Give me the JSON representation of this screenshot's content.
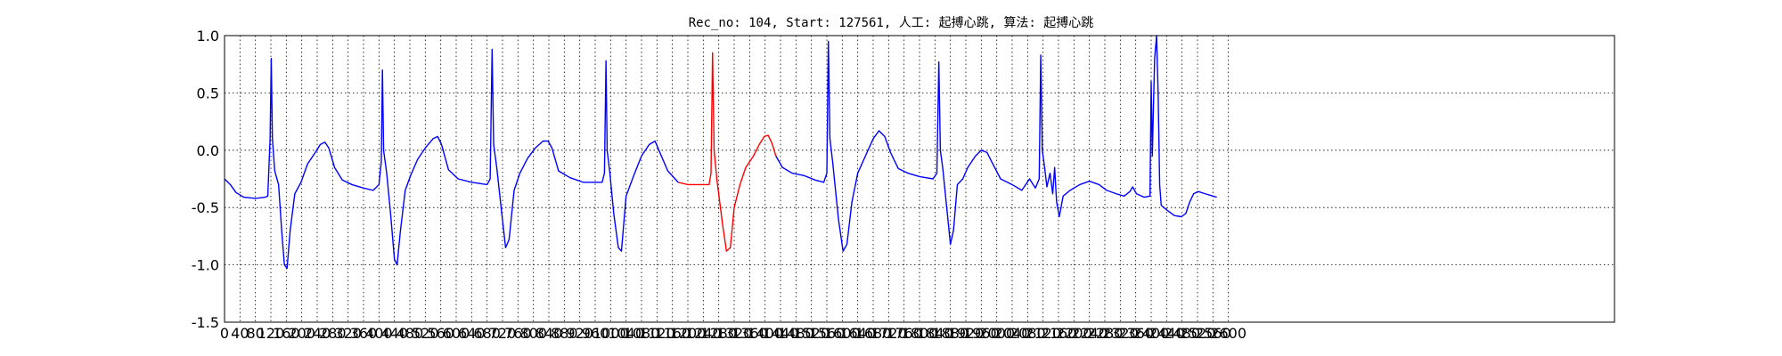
{
  "chart_data": {
    "type": "line",
    "title": "Rec_no: 104, Start: 127561, 人工: 起搏心跳, 算法: 起搏心跳",
    "xlabel": "",
    "ylabel": "",
    "xlim": [
      0,
      3600
    ],
    "ylim": [
      -1.5,
      1.0
    ],
    "grid": true,
    "yticks": [
      1.0,
      0.5,
      0.0,
      -0.5,
      -1.0,
      -1.5
    ],
    "ytick_labels": [
      "1.0",
      "0.5",
      "0.0",
      "-0.5",
      "-1.0",
      "-1.5"
    ],
    "xticks": [
      0,
      40,
      80,
      120,
      160,
      200,
      240,
      280,
      320,
      360,
      400,
      440,
      480,
      520,
      560,
      600,
      640,
      680,
      720,
      760,
      800,
      840,
      880,
      920,
      960,
      1000,
      1040,
      1080,
      1120,
      1160,
      1200,
      1240,
      1280,
      1320,
      1360,
      1400,
      1440,
      1480,
      1520,
      1560,
      1600,
      1640,
      1680,
      1720,
      1760,
      1800,
      1840,
      1880,
      1920,
      1960,
      2000,
      2040,
      2080,
      2120,
      2160,
      2200,
      2240,
      2280,
      2320,
      2360,
      2400,
      2440,
      2480,
      2520,
      2560,
      2600
    ],
    "series": [
      {
        "color": "#0000ff",
        "points": [
          [
            0,
            -0.25
          ],
          [
            15,
            -0.3
          ],
          [
            30,
            -0.37
          ],
          [
            50,
            -0.41
          ],
          [
            80,
            -0.42
          ],
          [
            105,
            -0.41
          ],
          [
            112,
            -0.4
          ],
          [
            118,
            0.1
          ],
          [
            121,
            0.8
          ],
          [
            124,
            0.1
          ],
          [
            130,
            -0.18
          ],
          [
            140,
            -0.3
          ],
          [
            148,
            -0.7
          ],
          [
            155,
            -1.0
          ],
          [
            162,
            -1.03
          ],
          [
            170,
            -0.7
          ],
          [
            182,
            -0.38
          ],
          [
            198,
            -0.28
          ],
          [
            215,
            -0.12
          ],
          [
            235,
            -0.02
          ],
          [
            248,
            0.05
          ],
          [
            260,
            0.07
          ],
          [
            270,
            0.02
          ],
          [
            285,
            -0.15
          ],
          [
            305,
            -0.26
          ],
          [
            330,
            -0.3
          ],
          [
            360,
            -0.33
          ],
          [
            385,
            -0.35
          ],
          [
            400,
            -0.3
          ],
          [
            406,
            -0.1
          ],
          [
            409,
            0.7
          ],
          [
            412,
            0.0
          ],
          [
            420,
            -0.2
          ],
          [
            430,
            -0.55
          ],
          [
            440,
            -0.95
          ],
          [
            447,
            -1.0
          ],
          [
            455,
            -0.72
          ],
          [
            468,
            -0.35
          ],
          [
            482,
            -0.22
          ],
          [
            500,
            -0.08
          ],
          [
            520,
            0.02
          ],
          [
            540,
            0.1
          ],
          [
            552,
            0.12
          ],
          [
            562,
            0.05
          ],
          [
            580,
            -0.17
          ],
          [
            605,
            -0.25
          ],
          [
            640,
            -0.28
          ],
          [
            680,
            -0.3
          ],
          [
            688,
            -0.25
          ],
          [
            693,
            0.88
          ],
          [
            697,
            0.05
          ],
          [
            705,
            -0.15
          ],
          [
            718,
            -0.55
          ],
          [
            728,
            -0.85
          ],
          [
            737,
            -0.78
          ],
          [
            750,
            -0.35
          ],
          [
            765,
            -0.2
          ],
          [
            785,
            -0.07
          ],
          [
            805,
            0.02
          ],
          [
            825,
            0.08
          ],
          [
            838,
            0.08
          ],
          [
            848,
            0.02
          ],
          [
            865,
            -0.18
          ],
          [
            895,
            -0.24
          ],
          [
            930,
            -0.28
          ],
          [
            978,
            -0.28
          ],
          [
            984,
            -0.2
          ],
          [
            988,
            0.78
          ],
          [
            991,
            0.0
          ],
          [
            998,
            -0.2
          ],
          [
            1008,
            -0.55
          ],
          [
            1020,
            -0.85
          ],
          [
            1028,
            -0.88
          ],
          [
            1040,
            -0.4
          ],
          [
            1060,
            -0.22
          ],
          [
            1080,
            -0.05
          ],
          [
            1100,
            0.05
          ],
          [
            1115,
            0.08
          ],
          [
            1125,
            0.0
          ],
          [
            1148,
            -0.18
          ],
          [
            1175,
            -0.28
          ]
        ]
      },
      {
        "color": "#ff0000",
        "points": [
          [
            1175,
            -0.28
          ],
          [
            1200,
            -0.3
          ],
          [
            1240,
            -0.3
          ],
          [
            1255,
            -0.3
          ],
          [
            1260,
            -0.2
          ],
          [
            1264,
            0.85
          ],
          [
            1268,
            0.0
          ],
          [
            1275,
            -0.25
          ],
          [
            1290,
            -0.65
          ],
          [
            1300,
            -0.88
          ],
          [
            1310,
            -0.85
          ],
          [
            1320,
            -0.5
          ],
          [
            1335,
            -0.3
          ],
          [
            1350,
            -0.15
          ],
          [
            1370,
            -0.05
          ],
          [
            1385,
            0.05
          ],
          [
            1398,
            0.12
          ],
          [
            1408,
            0.13
          ],
          [
            1418,
            0.06
          ],
          [
            1428,
            -0.05
          ]
        ]
      },
      {
        "color": "#0000ff",
        "points": [
          [
            1428,
            -0.05
          ],
          [
            1445,
            -0.15
          ],
          [
            1470,
            -0.2
          ],
          [
            1500,
            -0.22
          ],
          [
            1530,
            -0.26
          ],
          [
            1552,
            -0.28
          ],
          [
            1560,
            -0.2
          ],
          [
            1564,
            0.95
          ],
          [
            1568,
            0.1
          ],
          [
            1575,
            -0.1
          ],
          [
            1590,
            -0.6
          ],
          [
            1602,
            -0.88
          ],
          [
            1612,
            -0.82
          ],
          [
            1625,
            -0.45
          ],
          [
            1640,
            -0.2
          ],
          [
            1660,
            -0.05
          ],
          [
            1680,
            0.1
          ],
          [
            1695,
            0.17
          ],
          [
            1710,
            0.12
          ],
          [
            1725,
            -0.02
          ],
          [
            1745,
            -0.16
          ],
          [
            1770,
            -0.2
          ],
          [
            1800,
            -0.23
          ],
          [
            1835,
            -0.25
          ],
          [
            1845,
            -0.2
          ],
          [
            1850,
            0.77
          ],
          [
            1854,
            0.0
          ],
          [
            1860,
            -0.15
          ],
          [
            1872,
            -0.55
          ],
          [
            1880,
            -0.82
          ],
          [
            1888,
            -0.7
          ],
          [
            1898,
            -0.3
          ],
          [
            1912,
            -0.25
          ],
          [
            1925,
            -0.15
          ],
          [
            1945,
            -0.05
          ],
          [
            1960,
            0.0
          ],
          [
            1975,
            -0.02
          ],
          [
            1990,
            -0.12
          ],
          [
            2010,
            -0.25
          ],
          [
            2040,
            -0.3
          ],
          [
            2065,
            -0.35
          ],
          [
            2085,
            -0.25
          ],
          [
            2100,
            -0.33
          ],
          [
            2110,
            -0.25
          ],
          [
            2114,
            0.83
          ],
          [
            2118,
            0.0
          ],
          [
            2124,
            -0.15
          ],
          [
            2130,
            -0.32
          ],
          [
            2138,
            -0.2
          ],
          [
            2145,
            -0.38
          ],
          [
            2150,
            -0.15
          ],
          [
            2155,
            -0.45
          ],
          [
            2162,
            -0.58
          ],
          [
            2172,
            -0.4
          ],
          [
            2190,
            -0.35
          ],
          [
            2215,
            -0.3
          ],
          [
            2240,
            -0.27
          ],
          [
            2265,
            -0.3
          ],
          [
            2285,
            -0.35
          ],
          [
            2310,
            -0.38
          ],
          [
            2330,
            -0.4
          ],
          [
            2345,
            -0.36
          ],
          [
            2352,
            -0.32
          ],
          [
            2362,
            -0.38
          ],
          [
            2382,
            -0.41
          ],
          [
            2397,
            -0.4
          ],
          [
            2400,
            0.6
          ],
          [
            2403,
            -0.05
          ],
          [
            2406,
            0.4
          ],
          [
            2409,
            0.8
          ],
          [
            2414,
            1.0
          ],
          [
            2418,
            0.5
          ],
          [
            2422,
            -0.3
          ],
          [
            2426,
            -0.48
          ],
          [
            2440,
            -0.52
          ],
          [
            2460,
            -0.57
          ],
          [
            2478,
            -0.58
          ],
          [
            2490,
            -0.55
          ],
          [
            2500,
            -0.45
          ],
          [
            2510,
            -0.38
          ],
          [
            2522,
            -0.36
          ],
          [
            2540,
            -0.38
          ],
          [
            2560,
            -0.4
          ],
          [
            2570,
            -0.41
          ]
        ]
      }
    ]
  }
}
